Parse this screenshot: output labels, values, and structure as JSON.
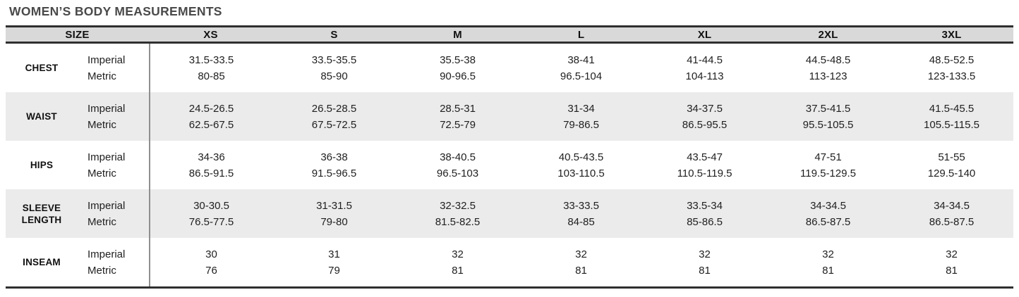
{
  "title": "WOMEN’S BODY MEASUREMENTS",
  "colors": {
    "header_bg": "#d9d9d9",
    "stripe_bg": "#ebebeb",
    "border_dark": "#2f2f2f",
    "divider": "#8f8f8f",
    "title_text": "#4a4a4a",
    "body_text": "#1f1f1f"
  },
  "chart_data": {
    "type": "table",
    "title": "WOMEN’S BODY MEASUREMENTS",
    "size_header": "SIZE",
    "sizes": [
      "XS",
      "S",
      "M",
      "L",
      "XL",
      "2XL",
      "3XL"
    ],
    "unit_labels": {
      "imperial": "Imperial",
      "metric": "Metric"
    },
    "rows": [
      {
        "label": "CHEST",
        "imperial": [
          "31.5-33.5",
          "33.5-35.5",
          "35.5-38",
          "38-41",
          "41-44.5",
          "44.5-48.5",
          "48.5-52.5"
        ],
        "metric": [
          "80-85",
          "85-90",
          "90-96.5",
          "96.5-104",
          "104-113",
          "113-123",
          "123-133.5"
        ]
      },
      {
        "label": "WAIST",
        "imperial": [
          "24.5-26.5",
          "26.5-28.5",
          "28.5-31",
          "31-34",
          "34-37.5",
          "37.5-41.5",
          "41.5-45.5"
        ],
        "metric": [
          "62.5-67.5",
          "67.5-72.5",
          "72.5-79",
          "79-86.5",
          "86.5-95.5",
          "95.5-105.5",
          "105.5-115.5"
        ]
      },
      {
        "label": "HIPS",
        "imperial": [
          "34-36",
          "36-38",
          "38-40.5",
          "40.5-43.5",
          "43.5-47",
          "47-51",
          "51-55"
        ],
        "metric": [
          "86.5-91.5",
          "91.5-96.5",
          "96.5-103",
          "103-110.5",
          "110.5-119.5",
          "119.5-129.5",
          "129.5-140"
        ]
      },
      {
        "label": "SLEEVE LENGTH",
        "imperial": [
          "30-30.5",
          "31-31.5",
          "32-32.5",
          "33-33.5",
          "33.5-34",
          "34-34.5",
          "34-34.5"
        ],
        "metric": [
          "76.5-77.5",
          "79-80",
          "81.5-82.5",
          "84-85",
          "85-86.5",
          "86.5-87.5",
          "86.5-87.5"
        ]
      },
      {
        "label": "INSEAM",
        "imperial": [
          "30",
          "31",
          "32",
          "32",
          "32",
          "32",
          "32"
        ],
        "metric": [
          "76",
          "79",
          "81",
          "81",
          "81",
          "81",
          "81"
        ]
      }
    ]
  }
}
